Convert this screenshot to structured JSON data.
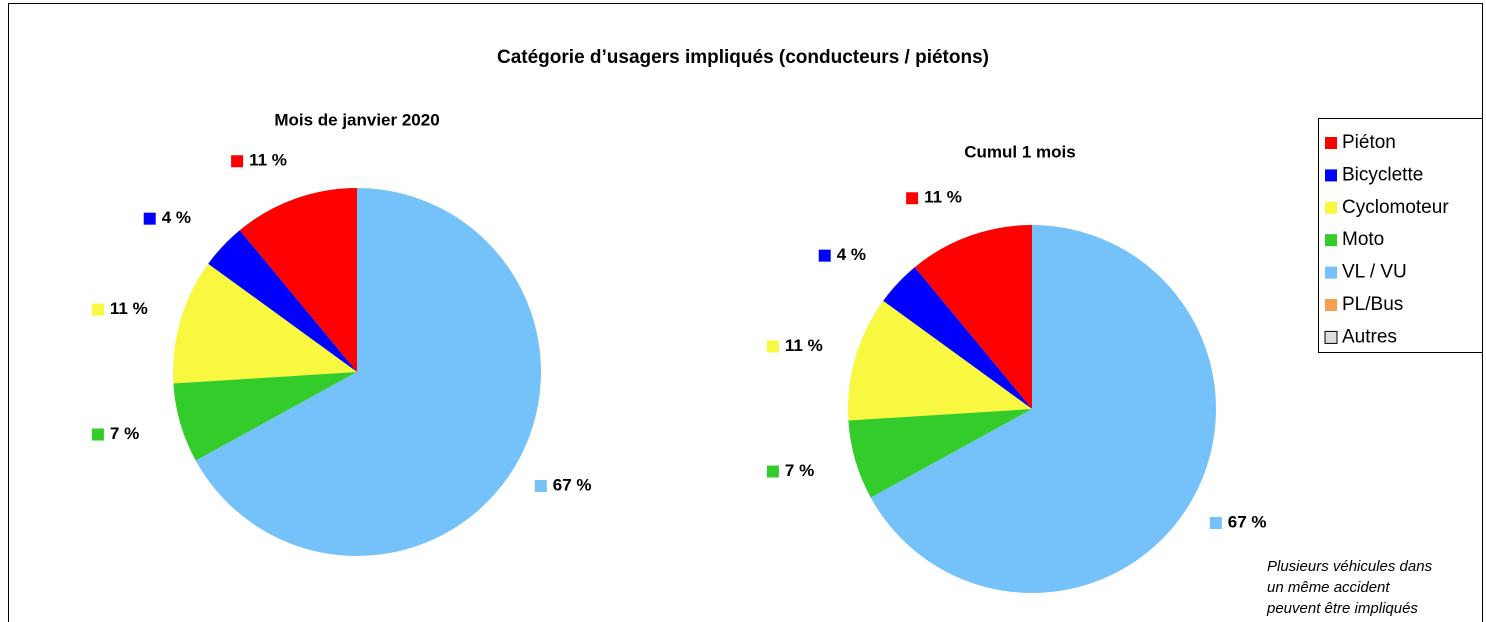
{
  "title": "Catégorie d’usagers impliqués (conducteurs / piétons)",
  "chart_data": [
    {
      "type": "pie",
      "title": "Mois de janvier 2020",
      "categories": [
        "Piéton",
        "Bicyclette",
        "Cyclomoteur",
        "Moto",
        "VL / VU",
        "PL/Bus",
        "Autres"
      ],
      "values": [
        11,
        4,
        11,
        7,
        67,
        0,
        0
      ],
      "value_labels": [
        "11 %",
        "4 %",
        "11 %",
        "7 %",
        "67 %",
        null,
        null
      ],
      "colors": [
        "#ff0000",
        "#0000ff",
        "#f8f840",
        "#33cc2a",
        "#75c1fa",
        "#f5a04f",
        "#dddddd"
      ]
    },
    {
      "type": "pie",
      "title": "Cumul 1 mois",
      "categories": [
        "Piéton",
        "Bicyclette",
        "Cyclomoteur",
        "Moto",
        "VL / VU",
        "PL/Bus",
        "Autres"
      ],
      "values": [
        11,
        4,
        11,
        7,
        67,
        0,
        0
      ],
      "value_labels": [
        "11 %",
        "4 %",
        "11 %",
        "7 %",
        "67 %",
        null,
        null
      ],
      "colors": [
        "#ff0000",
        "#0000ff",
        "#f8f840",
        "#33cc2a",
        "#75c1fa",
        "#f5a04f",
        "#dddddd"
      ]
    }
  ],
  "note": [
    "Plusieurs véhicules dans",
    "un même accident",
    "peuvent être impliqués"
  ]
}
